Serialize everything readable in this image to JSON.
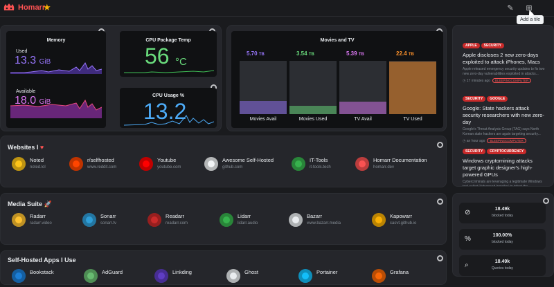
{
  "header": {
    "brand": "Homarr",
    "tooltip": "Add a tile"
  },
  "memory": {
    "title": "Memory",
    "used_label": "Used",
    "used_value": "13.3",
    "used_unit": "GiB",
    "available_label": "Available",
    "available_value": "18.0",
    "available_unit": "GiB"
  },
  "cpu_temp": {
    "title": "CPU Package Temp",
    "value": "56",
    "unit": "°C"
  },
  "cpu_usage": {
    "title": "CPU Usage %",
    "value": "13.2"
  },
  "movies": {
    "title": "Movies and TV",
    "columns": [
      {
        "label": "Movies Avail",
        "value": "5.70",
        "unit": "TB",
        "color": "#9775fa",
        "fill": 0.25
      },
      {
        "label": "Movies Used",
        "value": "3.54",
        "unit": "TB",
        "color": "#69db7c",
        "fill": 0.16
      },
      {
        "label": "TV Avail",
        "value": "5.39",
        "unit": "TB",
        "color": "#da77f2",
        "fill": 0.24
      },
      {
        "label": "TV Used",
        "value": "22.4",
        "unit": "TB",
        "color": "#ff922b",
        "fill": 0.99
      }
    ]
  },
  "websites": {
    "title": "Websites I",
    "apps": [
      {
        "name": "Noted",
        "url": "noted.lol",
        "icon": "noted-icon",
        "color": "#fcc419"
      },
      {
        "name": "r/selfhosted",
        "url": "www.reddit.com",
        "icon": "reddit-icon",
        "color": "#ff4500"
      },
      {
        "name": "Youtube",
        "url": "youtube.com",
        "icon": "youtube-icon",
        "color": "#ff0000"
      },
      {
        "name": "Awesome Self-Hosted",
        "url": "github.com",
        "icon": "github-icon",
        "color": "#f1f3f5"
      },
      {
        "name": "IT-Tools",
        "url": "it-tools.tech",
        "icon": "it-tools-icon",
        "color": "#37b24d"
      },
      {
        "name": "Homarr Documentation",
        "url": "homarr.dev",
        "icon": "homarr-icon",
        "color": "#fa5252"
      }
    ]
  },
  "media": {
    "title": "Media Suite",
    "apps": [
      {
        "name": "Radarr",
        "url": "radarr.video",
        "icon": "radarr-icon",
        "color": "#ffc230"
      },
      {
        "name": "Sonarr",
        "url": "sonarr.tv",
        "icon": "sonarr-icon",
        "color": "#2f9ed8"
      },
      {
        "name": "Readarr",
        "url": "readarr.com",
        "icon": "readarr-icon",
        "color": "#c92a2a"
      },
      {
        "name": "Lidarr",
        "url": "lidarr.audio",
        "icon": "lidarr-icon",
        "color": "#37b24d"
      },
      {
        "name": "Bazarr",
        "url": "www.bazarr.media",
        "icon": "bazarr-icon",
        "color": "#e9ecef"
      },
      {
        "name": "Kapowarr",
        "url": "casvt.github.io",
        "icon": "kapowarr-icon",
        "color": "#fab005"
      }
    ]
  },
  "selfhosted": {
    "title": "Self-Hosted Apps I Use",
    "apps": [
      {
        "name": "Bookstack",
        "color": "#1c7ed6"
      },
      {
        "name": "AdGuard",
        "color": "#68bc71"
      },
      {
        "name": "Linkding",
        "color": "#5f3dc4"
      },
      {
        "name": "Ghost",
        "color": "#e9ecef"
      },
      {
        "name": "Portainer",
        "color": "#13bef9"
      },
      {
        "name": "Grafana",
        "color": "#f76707"
      }
    ]
  },
  "news": [
    {
      "tags": [
        "APPLE",
        "SECURITY"
      ],
      "title": "Apple discloses 2 new zero-days exploited to attack iPhones, Macs",
      "desc": "Apple released emergency security updates to fix two new zero-day vulnerabilities exploited in attacks...",
      "time": "17 minutes ago",
      "source": "BLEEPINGCOMPUTER"
    },
    {
      "tags": [
        "SECURITY",
        "GOOGLE"
      ],
      "title": "Google: State hackers attack security researchers with new zero-day",
      "desc": "Google's Threat Analysis Group (TAG) says North Korean state hackers are again targeting security...",
      "time": "an hour ago",
      "source": "BLEEPINGCOMPUTER"
    },
    {
      "tags": [
        "SECURITY",
        "CRYPTOCURRENCY"
      ],
      "title": "Windows cryptomining attacks target graphic designer's high-powered GPUs",
      "desc": "Cybercriminals are leveraging a legitimate Windows tool called 'Advanced Installer' to infect the computers...",
      "time": "",
      "source": ""
    }
  ],
  "dns": [
    {
      "icon": "blocked-list-icon",
      "glyph": "⊘",
      "value": "18.49k",
      "label": "blocked today"
    },
    {
      "icon": "percent-icon",
      "glyph": "%",
      "value": "100.00%",
      "label": "blocked today"
    },
    {
      "icon": "search-icon",
      "glyph": "⌕",
      "value": "18.49k",
      "label": "Queries today"
    }
  ]
}
